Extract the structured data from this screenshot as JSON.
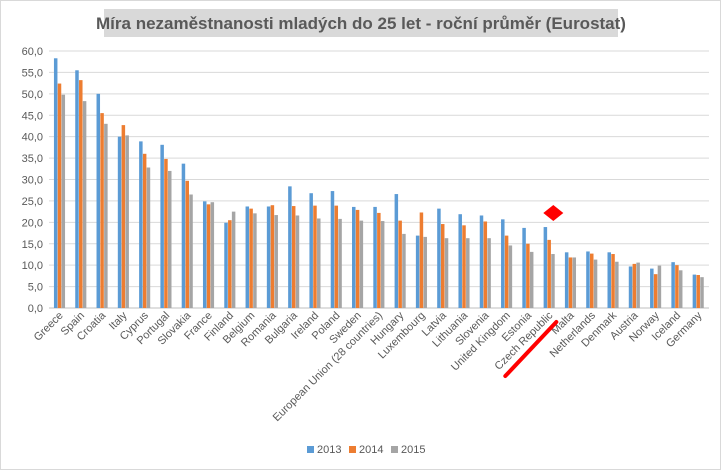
{
  "chart_data": {
    "type": "bar",
    "title": "Míra nezaměstnanosti mladých do 25 let - roční průměr (Eurostat)",
    "xlabel": "",
    "ylabel": "",
    "ylim": [
      0,
      60
    ],
    "yticks": [
      "0,0",
      "5,0",
      "10,0",
      "15,0",
      "20,0",
      "25,0",
      "30,0",
      "35,0",
      "40,0",
      "45,0",
      "50,0",
      "55,0",
      "60,0"
    ],
    "grid": true,
    "legend_position": "bottom",
    "categories": [
      "Greece",
      "Spain",
      "Croatia",
      "Italy",
      "Cyprus",
      "Portugal",
      "Slovakia",
      "France",
      "Finland",
      "Belgium",
      "Romania",
      "Bulgaria",
      "Ireland",
      "Poland",
      "Sweden",
      "European Union (28 countries)",
      "Hungary",
      "Luxembourg",
      "Latvia",
      "Lithuania",
      "Slovenia",
      "United Kingdom",
      "Estonia",
      "Czech Republic",
      "Malta",
      "Netherlands",
      "Denmark",
      "Austria",
      "Norway",
      "Iceland",
      "Germany"
    ],
    "series": [
      {
        "name": "2013",
        "color": "#5b9bd5",
        "values": [
          58.3,
          55.5,
          50.0,
          40.0,
          38.9,
          38.1,
          33.7,
          24.9,
          19.9,
          23.7,
          23.7,
          28.4,
          26.8,
          27.3,
          23.6,
          23.6,
          26.6,
          16.9,
          23.2,
          21.9,
          21.6,
          20.7,
          18.7,
          18.9,
          13.0,
          13.2,
          13.0,
          9.7,
          9.2,
          10.7,
          7.8
        ]
      },
      {
        "name": "2014",
        "color": "#ed7d31",
        "values": [
          52.4,
          53.2,
          45.5,
          42.7,
          36.0,
          34.8,
          29.7,
          24.2,
          20.5,
          23.2,
          24.0,
          23.8,
          23.9,
          23.9,
          22.9,
          22.2,
          20.4,
          22.3,
          19.6,
          19.3,
          20.2,
          16.9,
          15.0,
          15.9,
          11.8,
          12.7,
          12.6,
          10.3,
          7.9,
          10.0,
          7.7
        ]
      },
      {
        "name": "2015",
        "color": "#a5a5a5",
        "values": [
          49.8,
          48.3,
          43.0,
          40.3,
          32.8,
          32.0,
          26.5,
          24.7,
          22.5,
          22.1,
          21.7,
          21.6,
          20.9,
          20.8,
          20.4,
          20.3,
          17.3,
          16.6,
          16.3,
          16.3,
          16.3,
          14.6,
          13.1,
          12.6,
          11.8,
          11.3,
          10.8,
          10.6,
          9.9,
          8.8,
          7.2
        ]
      }
    ]
  },
  "annotations": {
    "marker_color": "#ff0000",
    "highlighted_category": "Czech Republic"
  }
}
